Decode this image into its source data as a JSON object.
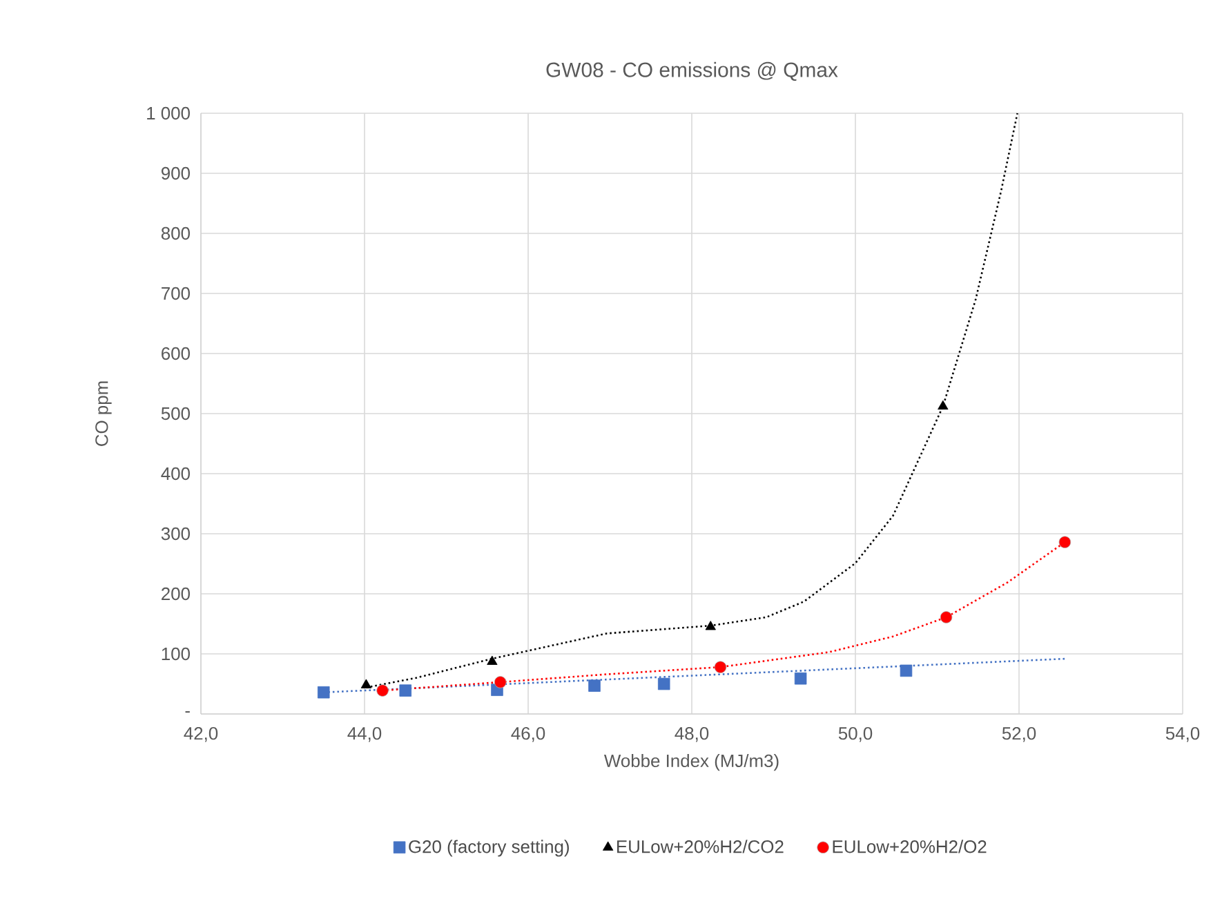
{
  "chart_data": {
    "type": "scatter",
    "title": "GW08 - CO emissions @ Qmax",
    "xlabel": "Wobbe Index (MJ/m3)",
    "ylabel": "CO ppm",
    "xlim": [
      42,
      54
    ],
    "xticks": [
      {
        "value": 42,
        "label": "42,0"
      },
      {
        "value": 44,
        "label": "44,0"
      },
      {
        "value": 46,
        "label": "46,0"
      },
      {
        "value": 48,
        "label": "48,0"
      },
      {
        "value": 50,
        "label": "50,0"
      },
      {
        "value": 52,
        "label": "52,0"
      },
      {
        "value": 54,
        "label": "54,0"
      }
    ],
    "ylim": [
      0,
      1000
    ],
    "yticks": [
      {
        "value": 0,
        "label": "-"
      },
      100,
      200,
      300,
      400,
      500,
      600,
      700,
      800,
      900,
      {
        "value": 1000,
        "label": "1 000"
      }
    ],
    "grid": true,
    "legend": "bottom",
    "series": [
      {
        "name": "G20 (factory setting)",
        "color": "#4472c4",
        "marker": "square",
        "x": [
          43.5,
          44.5,
          45.62,
          46.81,
          47.66,
          49.33,
          50.62
        ],
        "values": [
          36,
          39,
          40,
          47,
          50,
          59,
          72
        ]
      },
      {
        "name": "EULow+20%H2/CO2",
        "color": "#000000",
        "marker": "triangle",
        "x": [
          44.02,
          45.56,
          48.23,
          51.07
        ],
        "values": [
          48,
          87,
          145,
          512
        ]
      },
      {
        "name": "EULow+20%H2/O2",
        "color": "#ff0000",
        "marker": "circle",
        "x": [
          44.22,
          45.66,
          48.35,
          51.11,
          52.56
        ],
        "values": [
          39,
          53,
          78,
          161,
          286
        ]
      },
      {
        "type": "line",
        "color": "#4472c4",
        "line_style": "dotted",
        "marker": "none",
        "x": [
          43.5,
          52.58
        ],
        "values": [
          36,
          92
        ]
      },
      {
        "type": "line",
        "color": "#000000",
        "line_style": "dotted",
        "marker": "none",
        "x": [
          44.02,
          44.63,
          45.56,
          46.26,
          46.96,
          47.74,
          48.23,
          48.91,
          49.37,
          50.0,
          50.46,
          51.07,
          51.47,
          51.78,
          51.98
        ],
        "values": [
          44,
          60,
          92,
          113,
          134,
          142,
          147,
          161,
          187,
          251,
          330,
          512,
          690,
          870,
          1000
        ]
      },
      {
        "type": "line",
        "color": "#ff0000",
        "line_style": "dotted",
        "marker": "none",
        "x": [
          44.22,
          45.66,
          46.96,
          48.35,
          49.68,
          50.46,
          51.11,
          51.86,
          52.56
        ],
        "values": [
          39,
          53,
          66,
          78,
          103,
          129,
          161,
          219,
          286
        ]
      }
    ]
  }
}
